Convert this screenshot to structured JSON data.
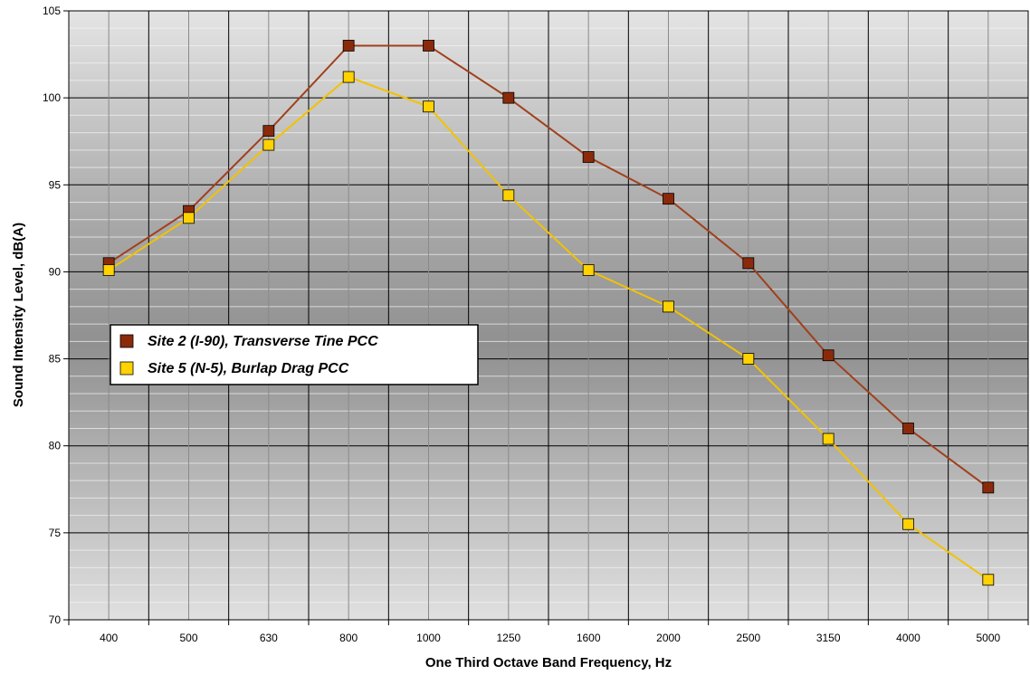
{
  "chart_data": {
    "type": "line",
    "title": "",
    "xlabel": "One Third Octave Band Frequency, Hz",
    "ylabel": "Sound Intensity Level, dB(A)",
    "categories": [
      "400",
      "500",
      "630",
      "800",
      "1000",
      "1250",
      "1600",
      "2000",
      "2500",
      "3150",
      "4000",
      "5000"
    ],
    "ylim": [
      70,
      105
    ],
    "yticks": [
      "70",
      "75",
      "80",
      "85",
      "90",
      "95",
      "100",
      "105"
    ],
    "ytick_values": [
      70,
      75,
      80,
      85,
      90,
      95,
      100,
      105
    ],
    "grid": true,
    "legend_position": "middle-left",
    "series": [
      {
        "name": "Site 2 (I-90), Transverse Tine PCC",
        "color": "#8b2a0a",
        "line_color": "#a0401c",
        "values": [
          90.5,
          93.5,
          98.1,
          103.0,
          103.0,
          100.0,
          96.6,
          94.2,
          90.5,
          85.2,
          81.0,
          77.6
        ]
      },
      {
        "name": "Site 5 (N-5), Burlap Drag PCC",
        "color": "#ffd200",
        "line_color": "#f2c200",
        "values": [
          90.1,
          93.1,
          97.3,
          101.2,
          99.5,
          94.4,
          90.1,
          88.0,
          85.0,
          80.4,
          75.5,
          72.3
        ]
      }
    ]
  }
}
